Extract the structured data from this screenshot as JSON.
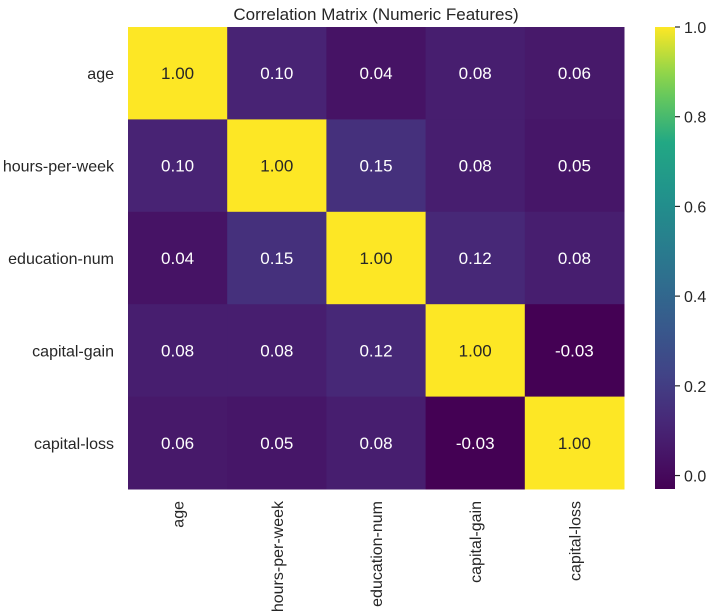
{
  "chart_data": {
    "type": "heatmap",
    "title": "Correlation Matrix (Numeric Features)",
    "xlabel": "",
    "ylabel": "",
    "row_labels": [
      "age",
      "hours-per-week",
      "education-num",
      "capital-gain",
      "capital-loss"
    ],
    "col_labels": [
      "age",
      "hours-per-week",
      "education-num",
      "capital-gain",
      "capital-loss"
    ],
    "values": [
      [
        1.0,
        0.1,
        0.04,
        0.08,
        0.06
      ],
      [
        0.1,
        1.0,
        0.15,
        0.08,
        0.05
      ],
      [
        0.04,
        0.15,
        1.0,
        0.12,
        0.08
      ],
      [
        0.08,
        0.08,
        0.12,
        1.0,
        -0.03
      ],
      [
        0.06,
        0.05,
        0.08,
        -0.03,
        1.0
      ]
    ],
    "annotation_format": "0.00",
    "colormap": "viridis",
    "colorbar": {
      "range": [
        -0.03,
        1.0
      ],
      "ticks": [
        0.0,
        0.2,
        0.4,
        0.6,
        0.8,
        1.0
      ],
      "tick_labels": [
        "0.0",
        "0.2",
        "0.4",
        "0.6",
        "0.8",
        "1.0"
      ],
      "placement": "right"
    },
    "grid": false
  }
}
